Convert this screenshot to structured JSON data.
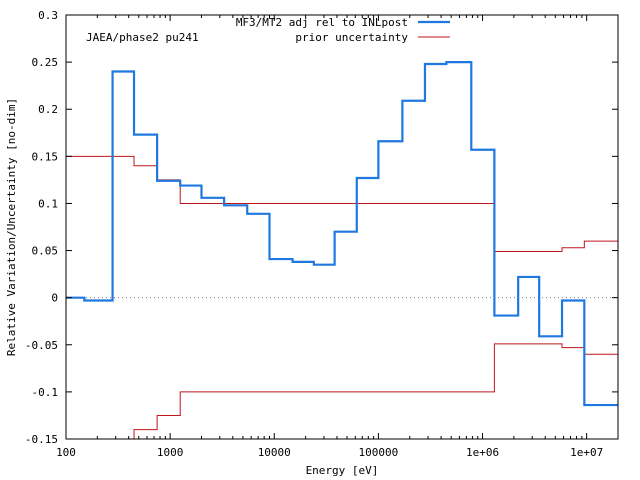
{
  "chart_data": {
    "type": "line",
    "title": "",
    "annotation": "JAEA/phase2 pu241",
    "xlabel": "Energy [eV]",
    "ylabel": "Relative Variation/Uncertainty [no-dim]",
    "x_scale": "log",
    "xlim": [
      100,
      20000000
    ],
    "ylim": [
      -0.15,
      0.3
    ],
    "x_ticks": [
      100,
      1000,
      10000,
      100000,
      1000000,
      10000000
    ],
    "x_tick_labels": [
      "100",
      "1000",
      "10000",
      "100000",
      "1e+06",
      "1e+07"
    ],
    "y_ticks": [
      -0.15,
      -0.1,
      -0.05,
      0,
      0.05,
      0.1,
      0.15,
      0.2,
      0.25,
      0.3
    ],
    "y_tick_labels": [
      "-0.15",
      "-0.1",
      "-0.05",
      "0",
      "0.05",
      "0.1",
      "0.15",
      "0.2",
      "0.25",
      "0.3"
    ],
    "grid": false,
    "zero_line": "dotted",
    "legend_position": "top-right",
    "series": [
      {
        "name": "MF3/MT2 adj rel to INLpost",
        "color": "#1e78e0",
        "style": "step",
        "edges": [
          100,
          150,
          280,
          450,
          750,
          1250,
          2000,
          3300,
          5500,
          9000,
          15000,
          24000,
          38000,
          62000,
          100000,
          170000,
          280000,
          450000,
          780000,
          1300000,
          2200000,
          3500000,
          5800000,
          9500000,
          20000000
        ],
        "values": [
          0.0,
          -0.003,
          0.24,
          0.173,
          0.124,
          0.119,
          0.106,
          0.098,
          0.089,
          0.041,
          0.038,
          0.035,
          0.07,
          0.127,
          0.166,
          0.209,
          0.248,
          0.25,
          0.157,
          -0.019,
          0.022,
          -0.041,
          -0.003,
          -0.114
        ]
      },
      {
        "name": "prior uncertainty",
        "color": "#c0161d",
        "style": "step",
        "mirror": true,
        "edges": [
          100,
          450,
          750,
          1250,
          1300000,
          5800000,
          9500000,
          20000000
        ],
        "values": [
          0.15,
          0.14,
          0.125,
          0.1,
          0.049,
          0.053,
          0.06
        ]
      }
    ]
  }
}
